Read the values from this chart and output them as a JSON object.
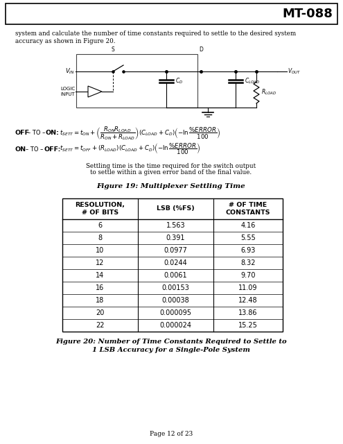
{
  "title": "MT-088",
  "body_text_1": "system and calculate the number of time constants required to settle to the desired system",
  "body_text_2": "accuracy as shown in Figure 20.",
  "fig19_caption": "Figure 19: Multiplexer Settling Time",
  "table_headers": [
    "RESOLUTION,\n# OF BITS",
    "LSB (%FS)",
    "# OF TIME\nCONSTANTS"
  ],
  "table_data": [
    [
      "6",
      "1.563",
      "4.16"
    ],
    [
      "8",
      "0.391",
      "5.55"
    ],
    [
      "10",
      "0.0977",
      "6.93"
    ],
    [
      "12",
      "0.0244",
      "8.32"
    ],
    [
      "14",
      "0.0061",
      "9.70"
    ],
    [
      "16",
      "0.00153",
      "11.09"
    ],
    [
      "18",
      "0.00038",
      "12.48"
    ],
    [
      "20",
      "0.000095",
      "13.86"
    ],
    [
      "22",
      "0.000024",
      "15.25"
    ]
  ],
  "fig20_line1": "Figure 20: Number of Time Constants Required to Settle to",
  "fig20_line2": "1 LSB Accuracy for a Single-Pole System",
  "page_footer": "Page 12 of 23",
  "settle_note_1": "Settling time is the time required for the switch output",
  "settle_note_2": "to settle within a given error band of the final value."
}
